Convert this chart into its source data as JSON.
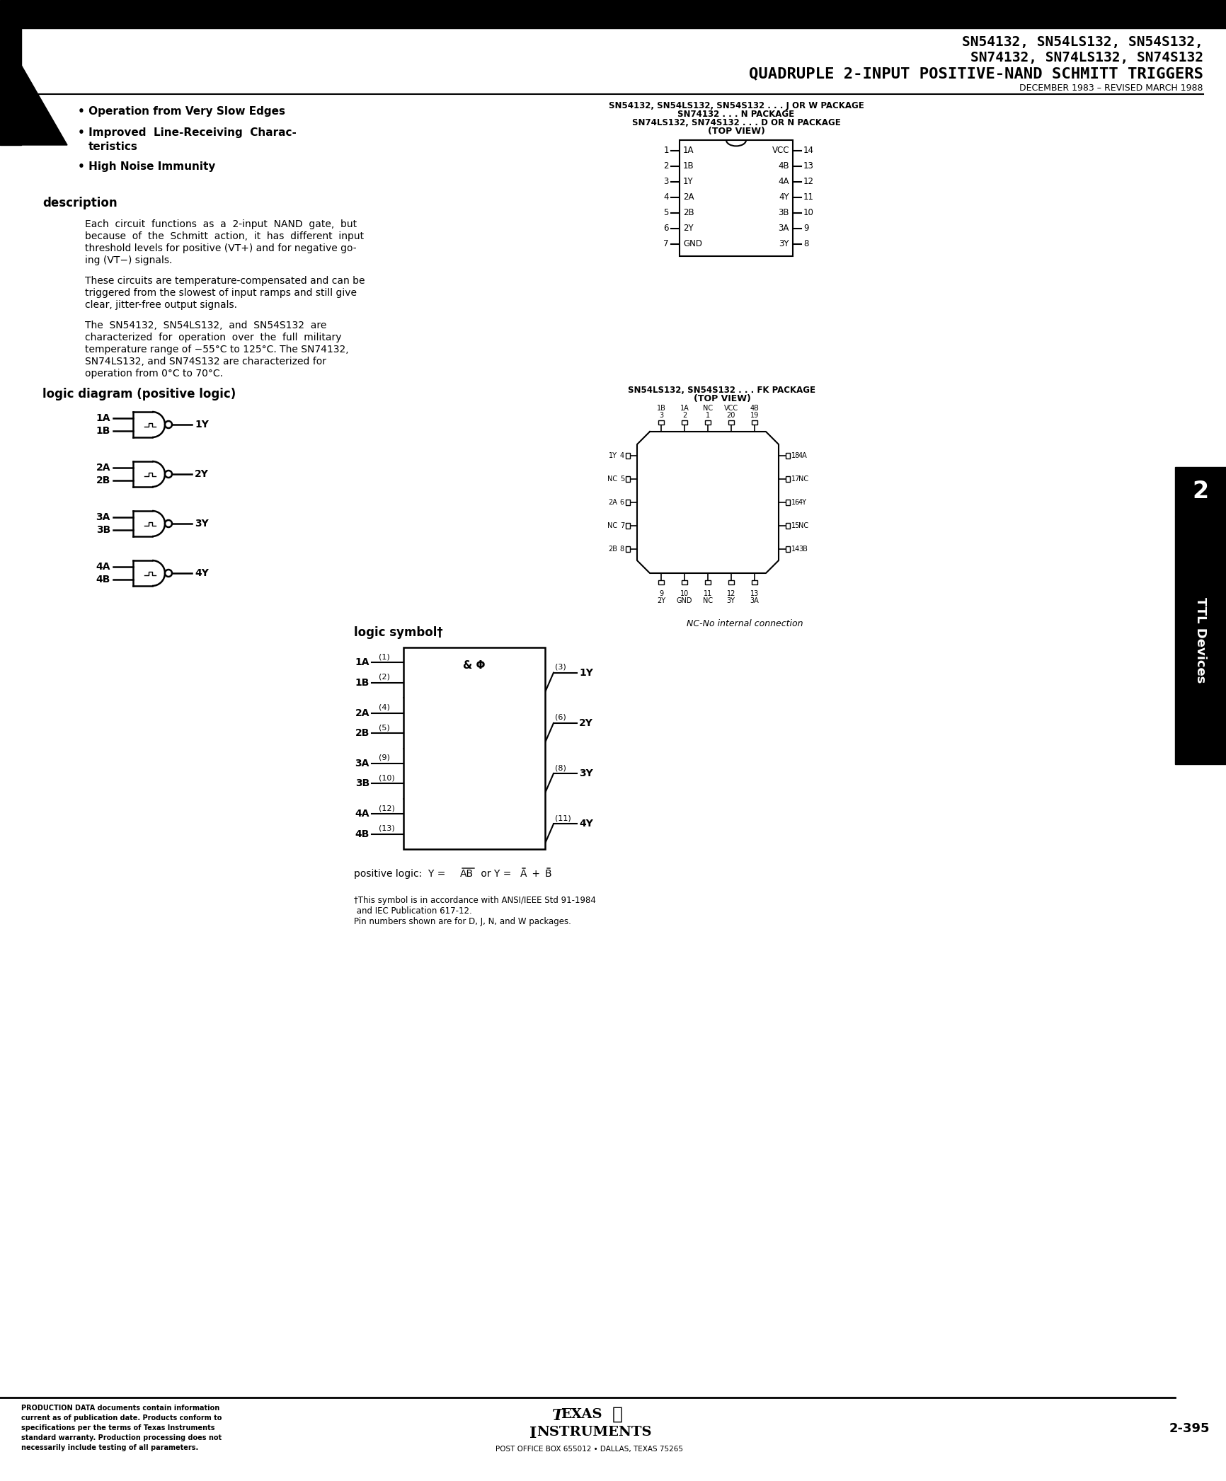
{
  "bg_color": "#ffffff",
  "title_line1": "SN54132, SN54LS132, SN54S132,",
  "title_line2": "SN74132, SN74LS132, SN74S132",
  "title_line3": "QUADRUPLE 2-INPUT POSITIVE-NAND SCHMITT TRIGGERS",
  "title_line4": "DECEMBER 1983 – REVISED MARCH 1988",
  "bullet1": "Operation from Very Slow Edges",
  "bullet2a": "Improved  Line-Receiving  Charac-",
  "bullet2b": "teristics",
  "bullet3": "High Noise Immunity",
  "desc_title": "description",
  "desc1a": "Each  circuit  functions  as  a  2-input  NAND  gate,  but",
  "desc1b": "because  of  the  Schmitt  action,  it  has  different  input",
  "desc1c": "threshold levels for positive (VT+) and for negative go-",
  "desc1d": "ing (VT−) signals.",
  "desc2a": "These circuits are temperature-compensated and can be",
  "desc2b": "triggered from the slowest of input ramps and still give",
  "desc2c": "clear, jitter-free output signals.",
  "desc3a": "The  SN54132,  SN54LS132,  and  SN54S132  are",
  "desc3b": "characterized  for  operation  over  the  full  military",
  "desc3c": "temperature range of −55°C to 125°C. The SN74132,",
  "desc3d": "SN74LS132, and SN74S132 are characterized for",
  "desc3e": "operation from 0°C to 70°C.",
  "logic_diag_title": "logic diagram (positive logic)",
  "pkg_title1": "SN54132, SN54LS132, SN54S132 . . . J OR W PACKAGE",
  "pkg_title2": "SN74132 . . . N PACKAGE",
  "pkg_title3": "SN74LS132, SN74S132 . . . D OR N PACKAGE",
  "pkg_title4": "(TOP VIEW)",
  "dip_left_labels": [
    "1A",
    "1B",
    "1Y",
    "2A",
    "2B",
    "2Y",
    "GND"
  ],
  "dip_left_nums": [
    "1",
    "2",
    "3",
    "4",
    "5",
    "6",
    "7"
  ],
  "dip_right_labels": [
    "VCC",
    "4B",
    "4A",
    "4Y",
    "3B",
    "3A",
    "3Y"
  ],
  "dip_right_nums": [
    "14",
    "13",
    "12",
    "11",
    "10",
    "9",
    "8"
  ],
  "fk_title1": "SN54LS132, SN54S132 . . . FK PACKAGE",
  "fk_title2": "(TOP VIEW)",
  "fk_top_labels": [
    "1B",
    "1A",
    "NC",
    "VCC",
    "4B"
  ],
  "fk_top_nums": [
    "3",
    "2",
    "1",
    "20",
    "19"
  ],
  "fk_bot_labels": [
    "2Y",
    "GND",
    "NC",
    "3Y",
    "3A"
  ],
  "fk_bot_nums": [
    "9",
    "10",
    "11",
    "12",
    "13"
  ],
  "fk_left_labels": [
    "1Y",
    "NC",
    "2A",
    "NC",
    "2B"
  ],
  "fk_left_nums": [
    "4",
    "5",
    "6",
    "7",
    "8"
  ],
  "fk_right_labels": [
    "4A",
    "NC",
    "4Y",
    "NC",
    "3B"
  ],
  "fk_right_nums": [
    "18",
    "17",
    "16",
    "15",
    "14"
  ],
  "nc_text": "NC-No internal connection",
  "logic_sym_title": "logic symbol†",
  "ls_inputs": [
    [
      "1A",
      "(1)",
      "1B",
      "(2)",
      "(3)",
      "1Y"
    ],
    [
      "2A",
      "(4)",
      "2B",
      "(5)",
      "(6)",
      "2Y"
    ],
    [
      "3A",
      "(9)",
      "3B",
      "(10)",
      "(8)",
      "3Y"
    ],
    [
      "4A",
      "(12)",
      "4B",
      "(13)",
      "(11)",
      "4Y"
    ]
  ],
  "footnote1": "†This symbol is in accordance with ANSI/IEEE Std 91-1984",
  "footnote2": " and IEC Publication 617-12.",
  "footnote3": "Pin numbers shown are for D, J, N, and W packages.",
  "footer_left": "PRODUCTION DATA documents contain information\ncurrent as of publication date. Products conform to\nspecifications per the terms of Texas Instruments\nstandard warranty. Production processing does not\nnecessarily include testing of all parameters.",
  "footer_page": "2-395",
  "section_num": "2",
  "ttl_label": "TTL Devices"
}
